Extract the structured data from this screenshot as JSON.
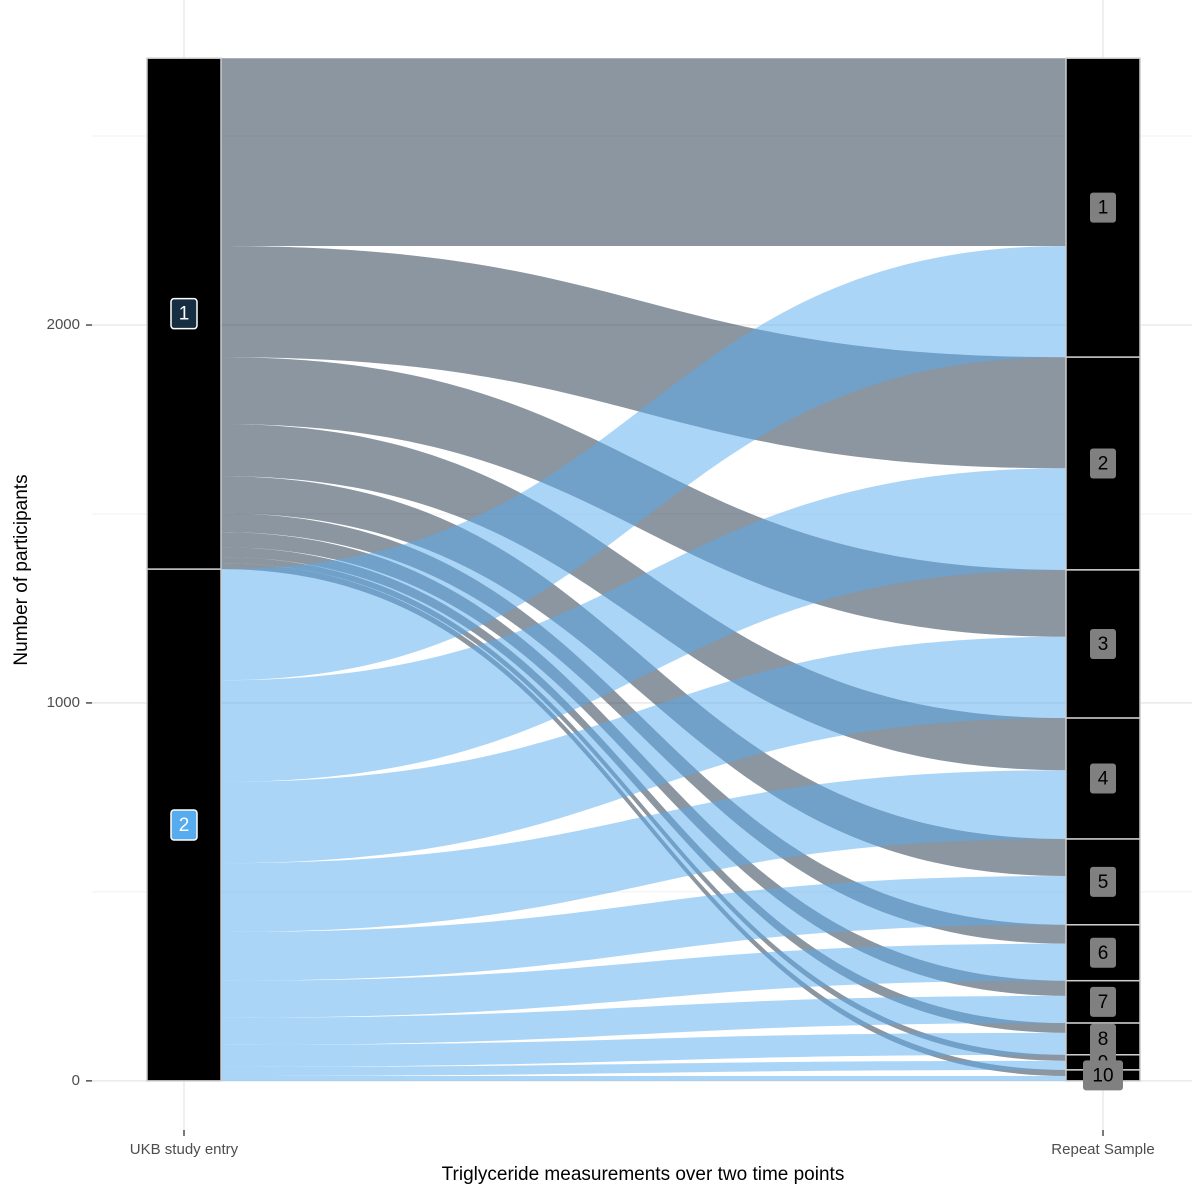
{
  "chart_data": {
    "type": "alluvial",
    "x_label": "Triglyceride measurements over two time points",
    "y_label": "Number of participants",
    "axes": [
      "UKB study entry",
      "Repeat Sample"
    ],
    "categories": [
      "1",
      "2",
      "3",
      "4",
      "5",
      "6",
      "7",
      "8",
      "9",
      "10"
    ],
    "series": [
      {
        "name": "1",
        "color": "#172d41",
        "values": [
          497,
          294,
          177,
          138,
          98,
          50,
          40,
          26,
          16,
          16
        ]
      },
      {
        "name": "2",
        "color": "#57abef",
        "values": [
          294,
          269,
          215,
          182,
          129,
          98,
          72,
          58,
          24,
          13
        ]
      }
    ],
    "alpha": 0.5,
    "ylim": [
      -130,
      2860
    ],
    "yticks": [
      0,
      1000,
      2000
    ],
    "grid": true
  }
}
